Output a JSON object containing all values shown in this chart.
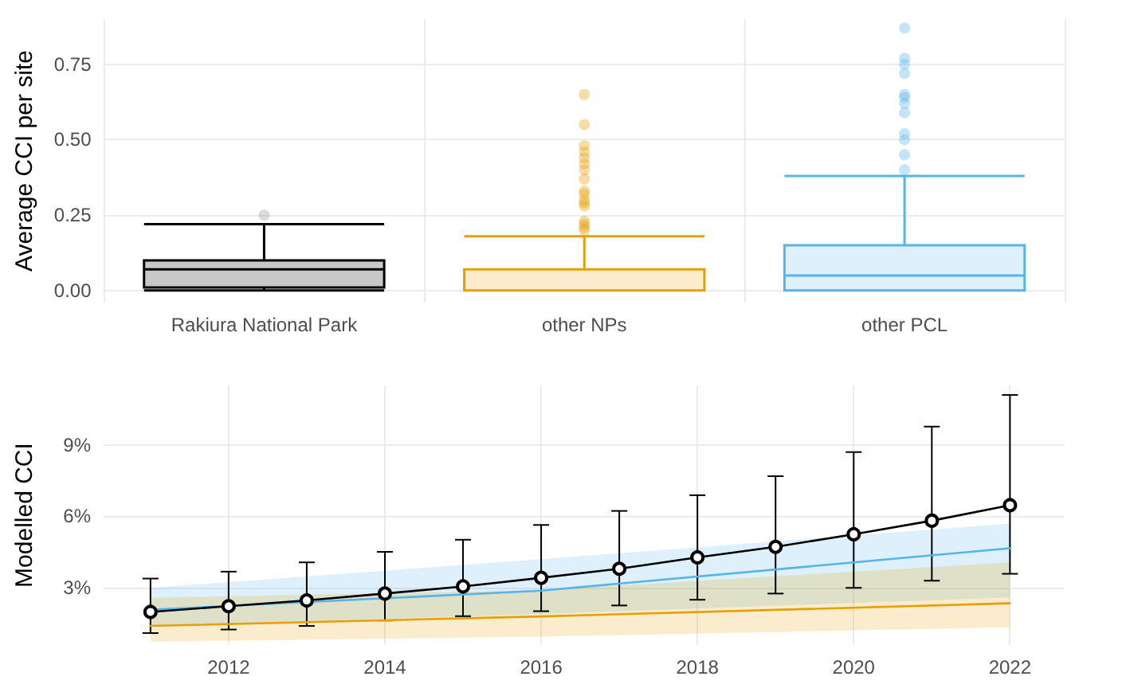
{
  "chart_data": [
    {
      "type": "box",
      "ylabel": "Average CCI per site",
      "categories": [
        "Rakiura National Park",
        "other NPs",
        "other PCL"
      ],
      "colors": [
        "#000000",
        "#e69f00",
        "#56b4e9"
      ],
      "boxes": [
        {
          "low": 0,
          "q1": 0.01,
          "median": 0.07,
          "q3": 0.1,
          "high": 0.22,
          "outliers": [
            0.25
          ]
        },
        {
          "low": 0,
          "q1": 0,
          "median": 0,
          "q3": 0.07,
          "high": 0.18,
          "outliers": [
            0.2,
            0.21,
            0.22,
            0.23,
            0.28,
            0.29,
            0.3,
            0.32,
            0.33,
            0.37,
            0.4,
            0.42,
            0.44,
            0.46,
            0.48,
            0.55,
            0.65
          ]
        },
        {
          "low": 0,
          "q1": 0,
          "median": 0.05,
          "q3": 0.15,
          "high": 0.38,
          "outliers": [
            0.4,
            0.45,
            0.5,
            0.52,
            0.59,
            0.62,
            0.64,
            0.65,
            0.72,
            0.75,
            0.77,
            0.87
          ]
        }
      ],
      "ylim": [
        -0.04,
        0.9
      ],
      "yticks": [
        {
          "value": 0,
          "label": "0.00"
        },
        {
          "value": 0.25,
          "label": "0.25"
        },
        {
          "value": 0.5,
          "label": "0.50"
        },
        {
          "value": 0.75,
          "label": "0.75"
        }
      ],
      "grid": true
    },
    {
      "type": "line",
      "ylabel": "Modelled CCI",
      "series": [
        {
          "color": "#56b4e9",
          "x": [
            2011,
            2016,
            2022
          ],
          "values": [
            2.08,
            2.88,
            4.66
          ],
          "lower": [
            1.4,
            1.9,
            2.6
          ],
          "upper": [
            3.0,
            4.2,
            5.7
          ],
          "marker": "none"
        },
        {
          "color": "#e69f00",
          "x": [
            2011,
            2016,
            2022
          ],
          "values": [
            1.4,
            1.8,
            2.35
          ],
          "lower": [
            0.74,
            0.95,
            1.34
          ],
          "upper": [
            2.58,
            2.9,
            4.07
          ],
          "marker": "none"
        },
        {
          "color": "#000000",
          "x": [
            2011,
            2012,
            2013,
            2014,
            2015,
            2016,
            2017,
            2018,
            2019,
            2020,
            2021,
            2022
          ],
          "values": [
            1.99,
            2.23,
            2.47,
            2.76,
            3.06,
            3.42,
            3.8,
            4.28,
            4.72,
            5.25,
            5.82,
            6.47
          ],
          "marker": "circle",
          "errors": [
            [
              1.1,
              3.39
            ],
            [
              1.25,
              3.68
            ],
            [
              1.4,
              4.07
            ],
            [
              1.63,
              4.51
            ],
            [
              1.81,
              5.02
            ],
            [
              2.02,
              5.64
            ],
            [
              2.26,
              6.23
            ],
            [
              2.5,
              6.89
            ],
            [
              2.76,
              7.69
            ],
            [
              3.0,
              8.7
            ],
            [
              3.3,
              9.77
            ],
            [
              3.59,
              11.1
            ]
          ]
        }
      ],
      "xlim": [
        2010.4,
        2022.7
      ],
      "xticks": [
        2012,
        2014,
        2016,
        2018,
        2020,
        2022
      ],
      "ylim": [
        0.6,
        11.5
      ],
      "yticks": [
        {
          "value": 3,
          "label": "3%"
        },
        {
          "value": 6,
          "label": "6%"
        },
        {
          "value": 9,
          "label": "9%"
        }
      ],
      "grid": true,
      "line_style": "solid"
    }
  ]
}
